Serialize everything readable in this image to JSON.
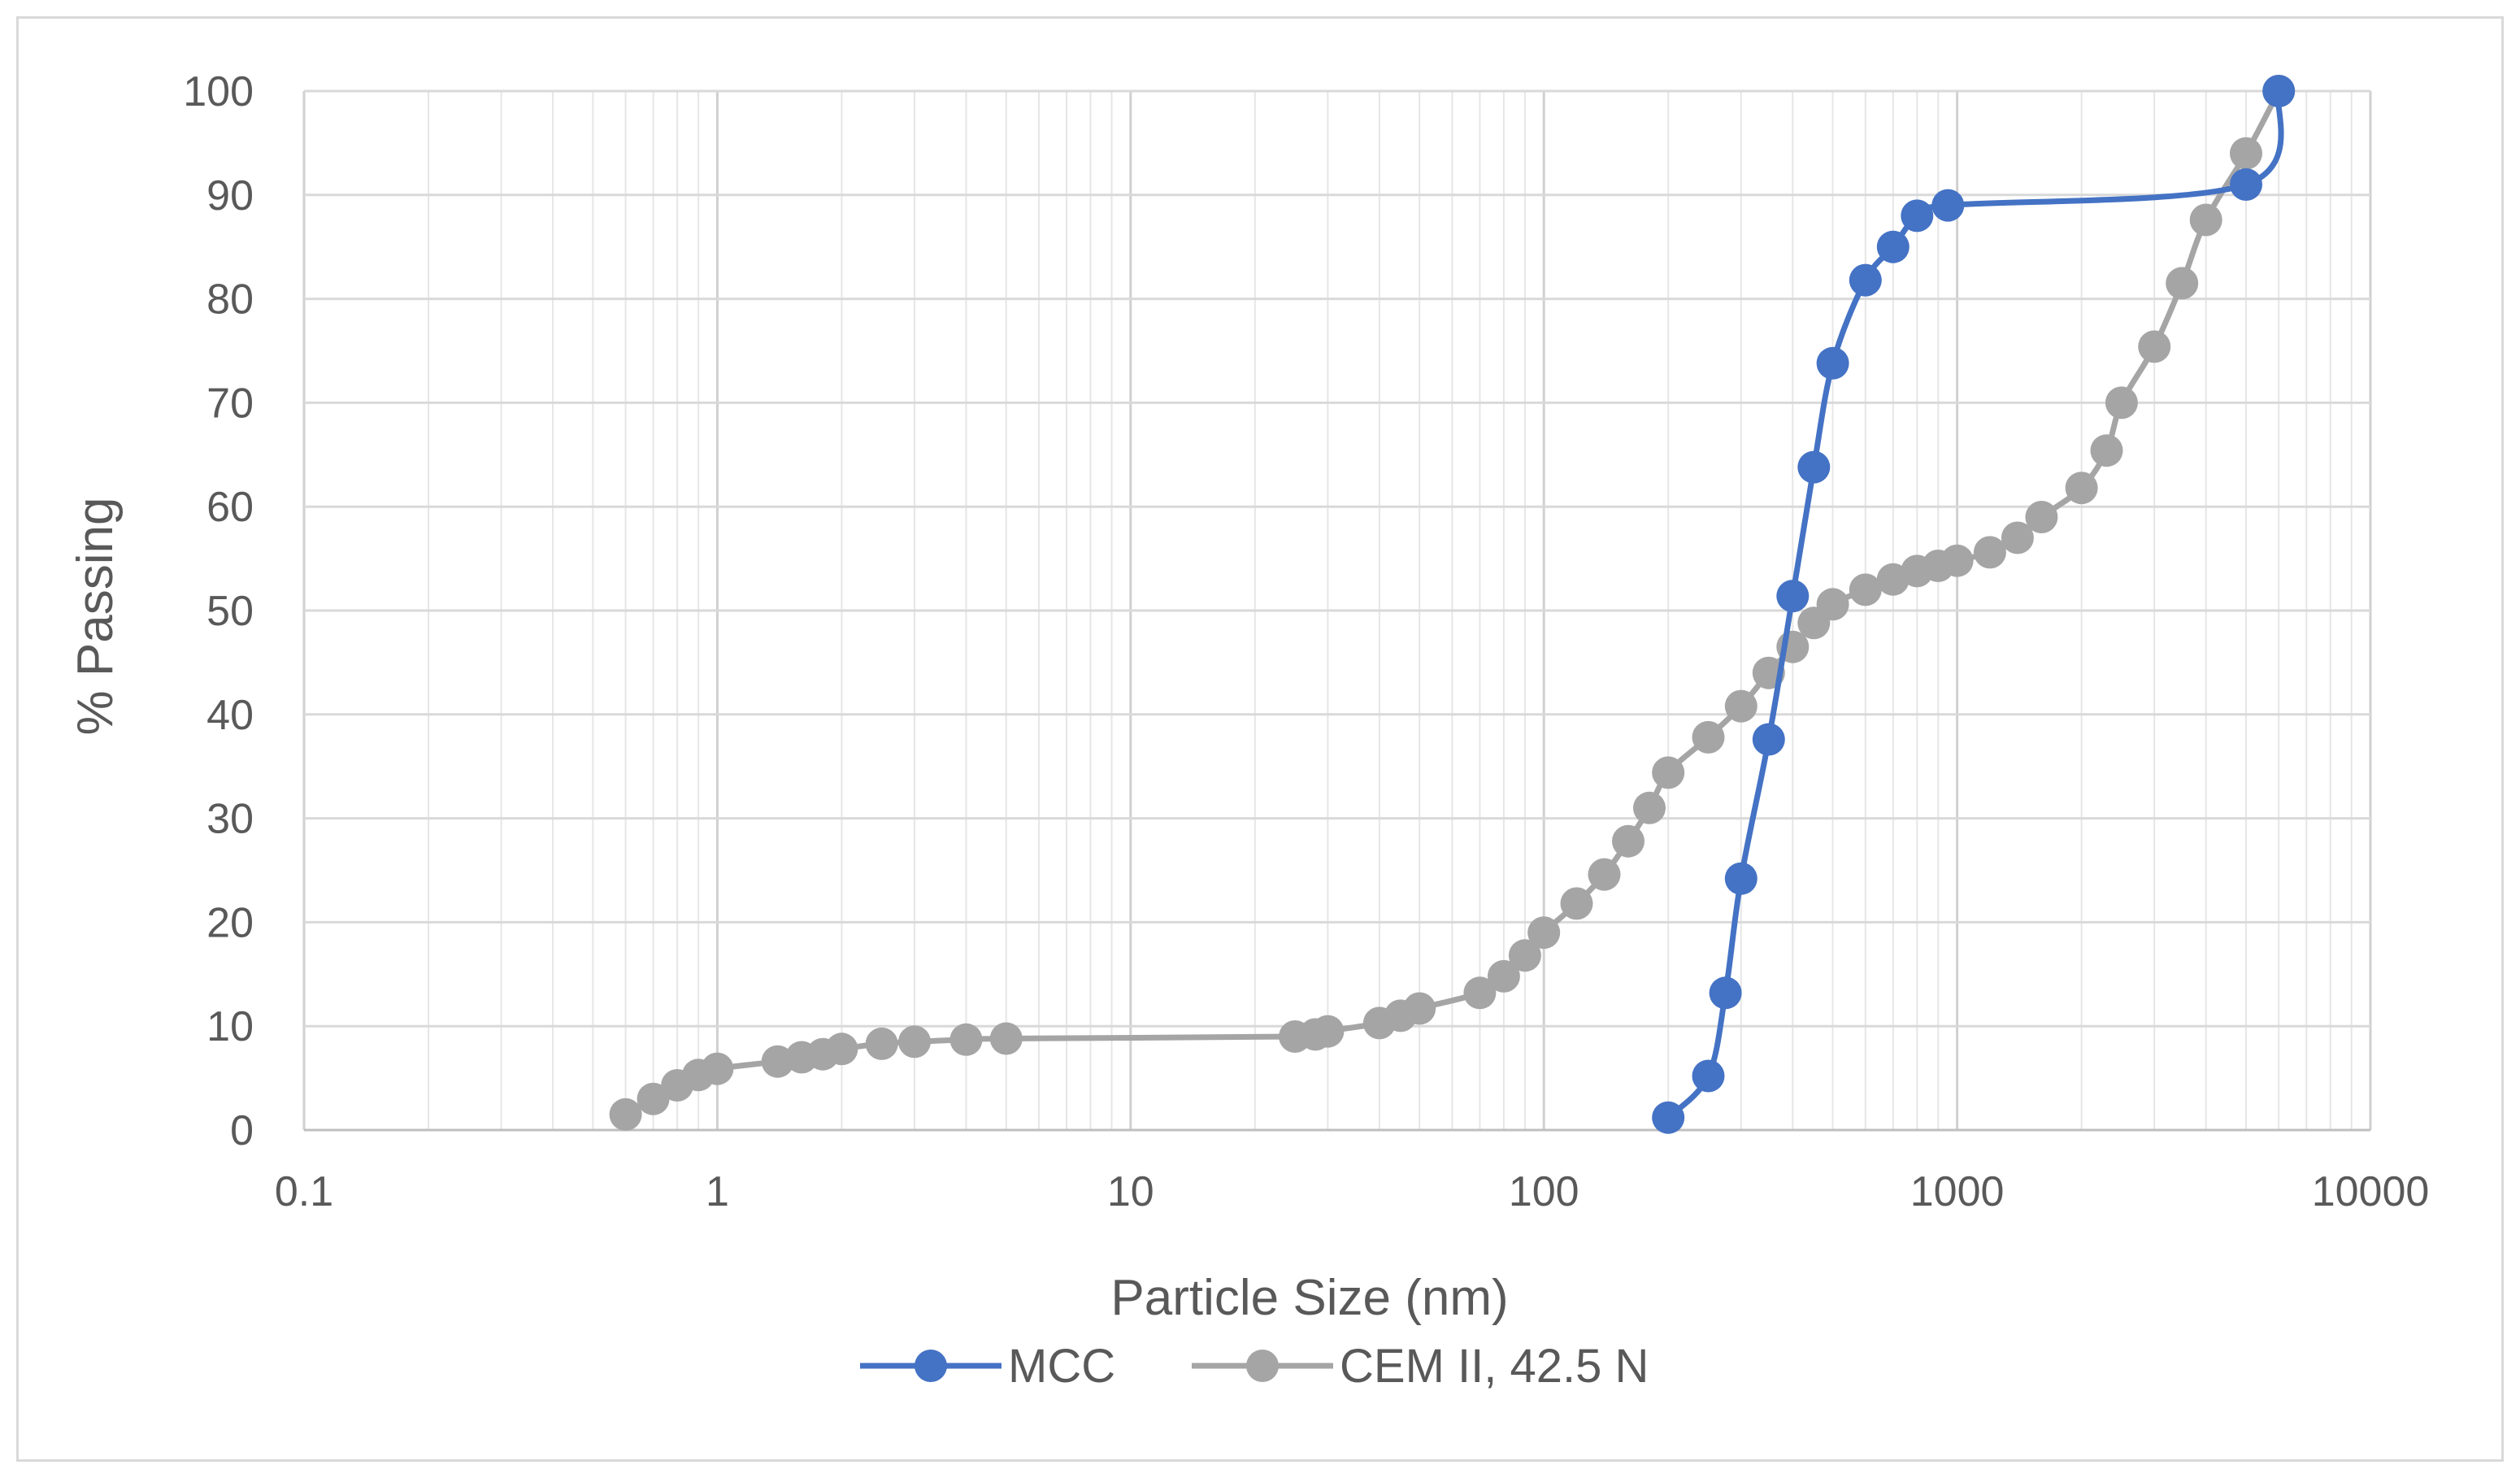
{
  "chart_data": {
    "type": "scatter",
    "title": "",
    "xlabel": "Particle Size (nm)",
    "ylabel": "% Passing",
    "x_scale": "log",
    "xlim": [
      0.1,
      10000
    ],
    "ylim": [
      0,
      100
    ],
    "x_ticks": [
      "0.1",
      "1",
      "10",
      "100",
      "1000",
      "10000"
    ],
    "y_ticks": [
      "0",
      "10",
      "20",
      "30",
      "40",
      "50",
      "60",
      "70",
      "80",
      "90",
      "100"
    ],
    "grid": true,
    "legend_position": "bottom",
    "series": [
      {
        "name": "MCC",
        "color": "#4472c4",
        "x": [
          200,
          250,
          275,
          300,
          350,
          400,
          450,
          500,
          600,
          700,
          800,
          950,
          5000,
          6000
        ],
        "y": [
          1.2,
          5.2,
          13.2,
          24.2,
          37.6,
          51.4,
          63.8,
          73.8,
          81.8,
          85.0,
          88.0,
          89.0,
          91.0,
          100
        ]
      },
      {
        "name": "CEM II, 42.5 N",
        "color": "#a5a5a5",
        "x": [
          0.6,
          0.7,
          0.8,
          0.9,
          1.0,
          1.4,
          1.6,
          1.8,
          2.0,
          2.5,
          3.0,
          4.0,
          5.0,
          25,
          28,
          30,
          40,
          45,
          50,
          70,
          80,
          90,
          100,
          120,
          140,
          160,
          180,
          200,
          250,
          300,
          350,
          400,
          450,
          500,
          600,
          700,
          800,
          900,
          1000,
          1200,
          1400,
          1600,
          2000,
          2300,
          2500,
          3000,
          3500,
          4000,
          5000,
          6000
        ],
        "y": [
          1.5,
          3.0,
          4.3,
          5.3,
          5.9,
          6.6,
          7.0,
          7.3,
          7.8,
          8.3,
          8.5,
          8.7,
          8.8,
          9.0,
          9.2,
          9.5,
          10.3,
          11.0,
          11.7,
          13.2,
          14.8,
          16.8,
          19.0,
          21.8,
          24.6,
          27.8,
          31.0,
          34.4,
          37.8,
          40.8,
          44.0,
          46.5,
          48.8,
          50.6,
          52.0,
          53.0,
          53.8,
          54.3,
          54.8,
          55.6,
          57.0,
          59.0,
          61.8,
          65.4,
          70.0,
          75.4,
          81.5,
          87.6,
          94.0,
          100
        ]
      }
    ]
  }
}
